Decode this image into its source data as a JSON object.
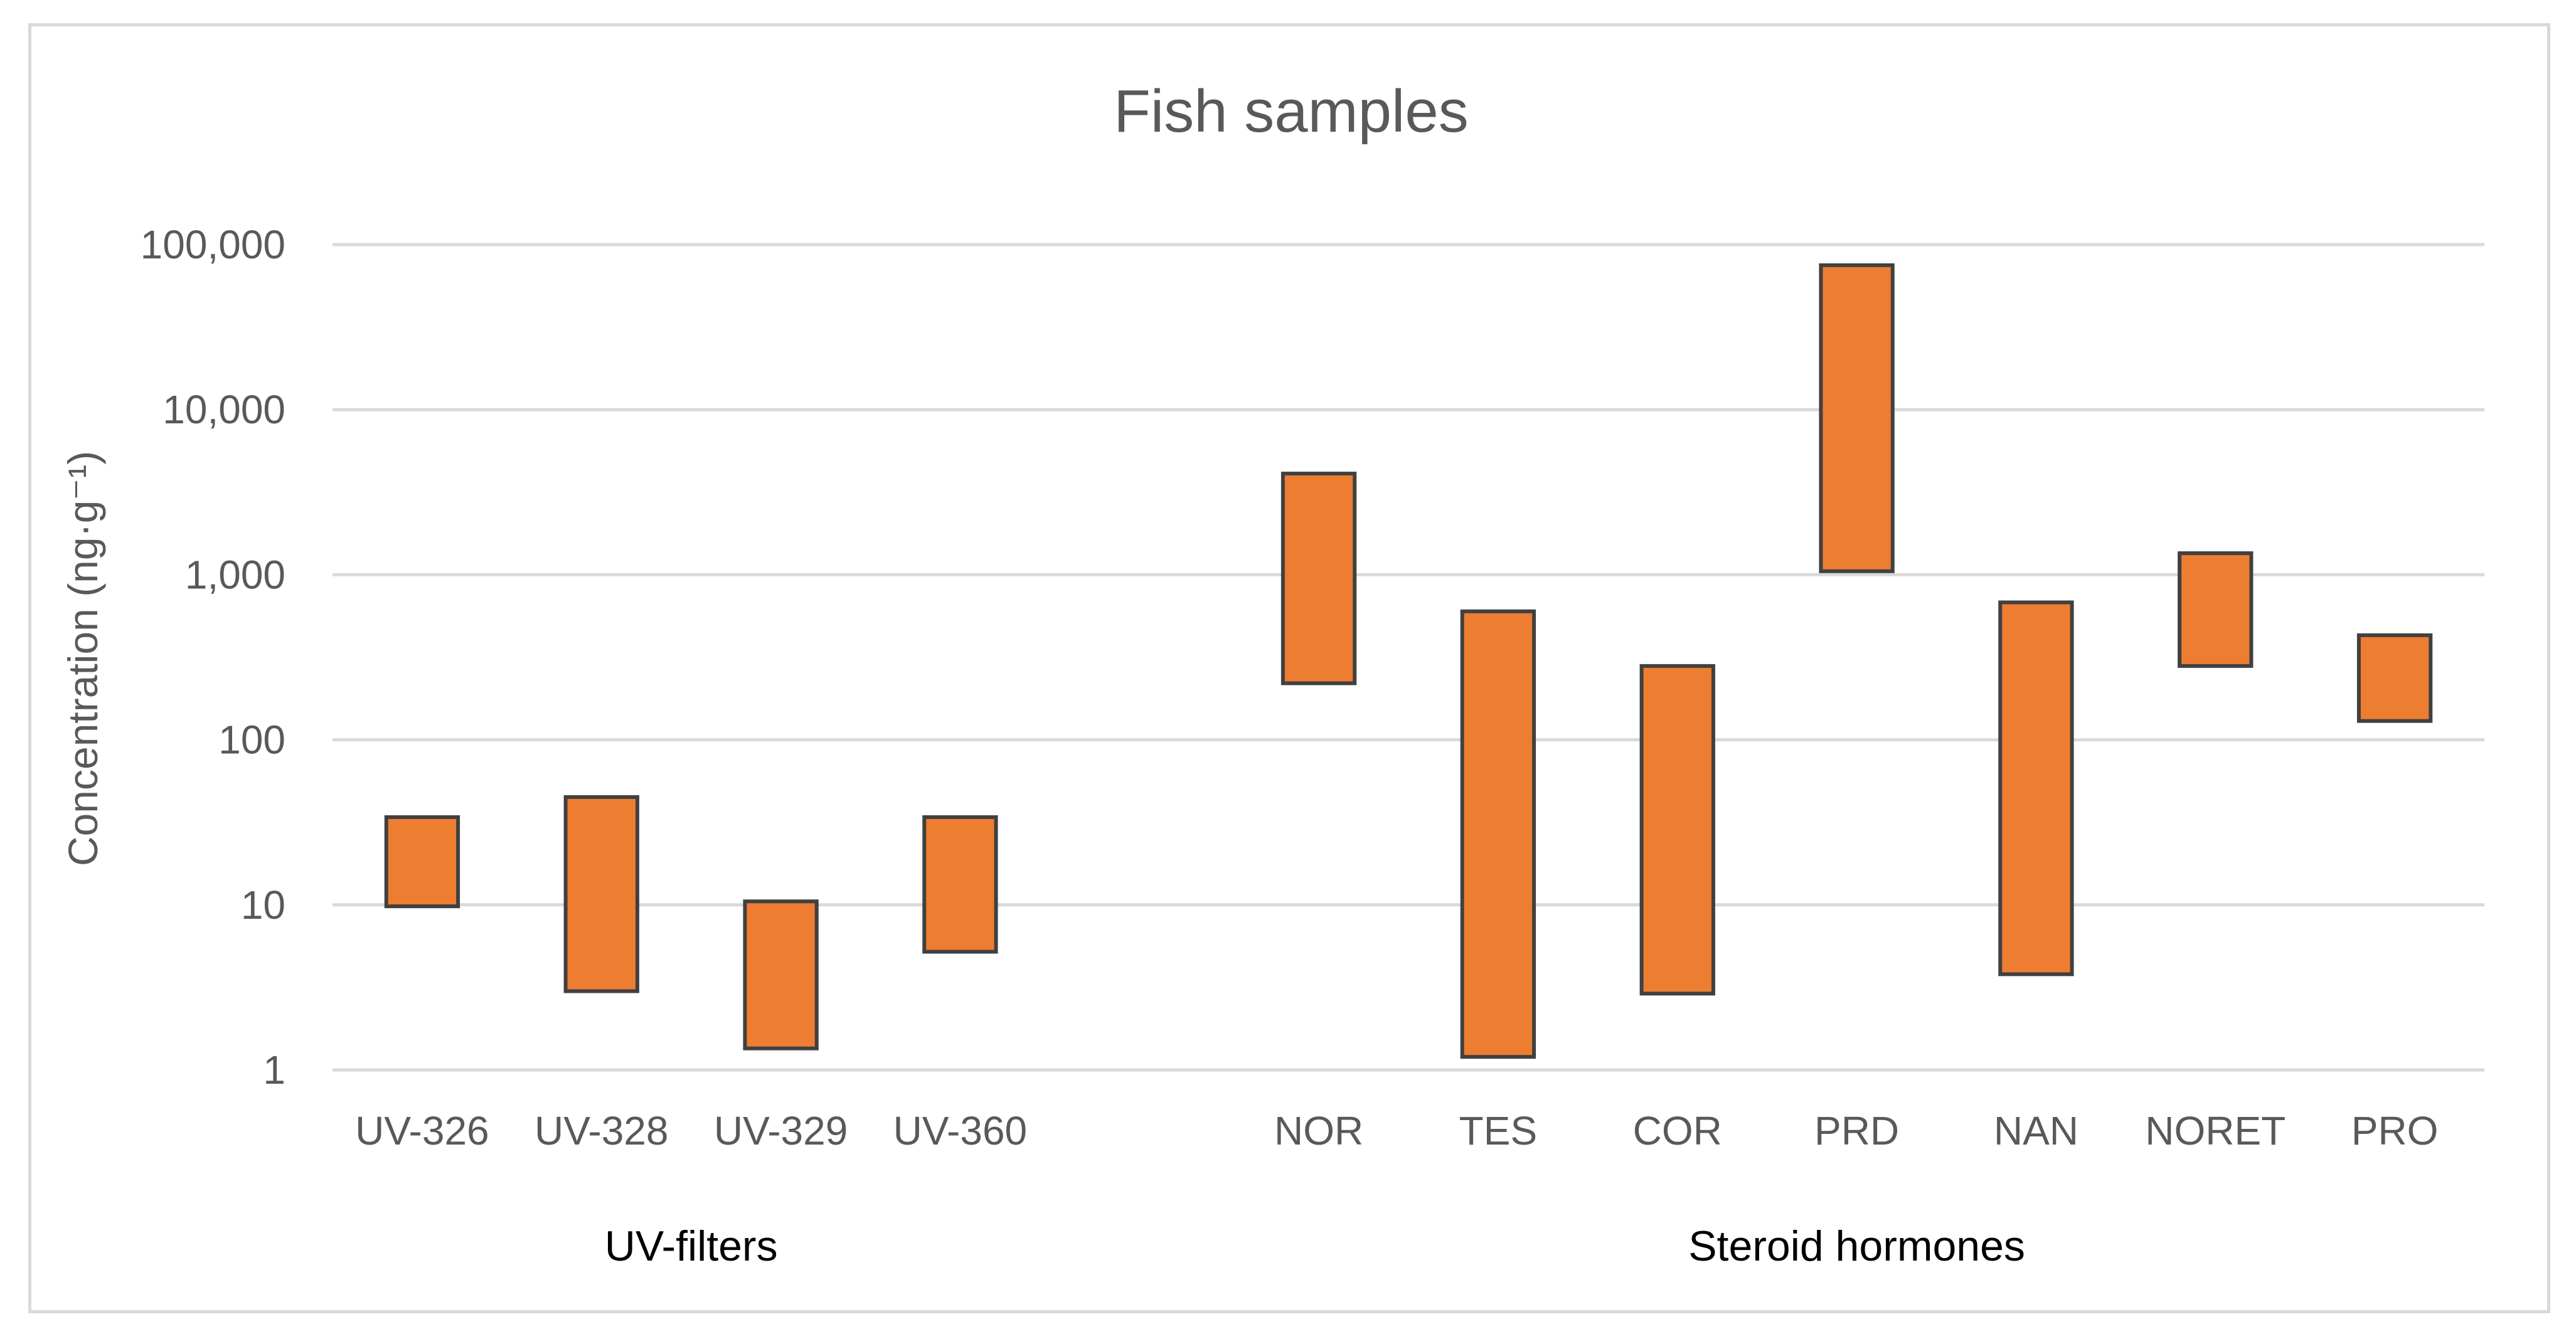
{
  "chart_data": {
    "type": "bar",
    "subtype": "floating-range",
    "title": "Fish samples",
    "ylabel": "Concentration (ng·g⁻¹)",
    "xlabel": "",
    "yscale": "log",
    "ylim": [
      1,
      100000
    ],
    "y_ticks": [
      1,
      10,
      100,
      1000,
      10000,
      100000
    ],
    "y_tick_labels": [
      "1",
      "10",
      "100",
      "1,000",
      "10,000",
      "100,000"
    ],
    "grid": true,
    "bar_color": "#ed7d31",
    "bar_edge_color": "#404040",
    "groups": [
      {
        "name": "UV-filters",
        "categories": [
          "UV-326",
          "UV-328",
          "UV-329",
          "UV-360"
        ],
        "min": [
          9.8,
          3.0,
          1.35,
          5.2
        ],
        "max": [
          34,
          45,
          10.5,
          34
        ]
      },
      {
        "name": "Steroid hormones",
        "categories": [
          "NOR",
          "TES",
          "COR",
          "PRD",
          "NAN",
          "NORET",
          "PRO"
        ],
        "min": [
          220,
          1.2,
          2.9,
          1050,
          3.8,
          280,
          130
        ],
        "max": [
          4100,
          600,
          280,
          75000,
          680,
          1350,
          430
        ]
      }
    ]
  }
}
